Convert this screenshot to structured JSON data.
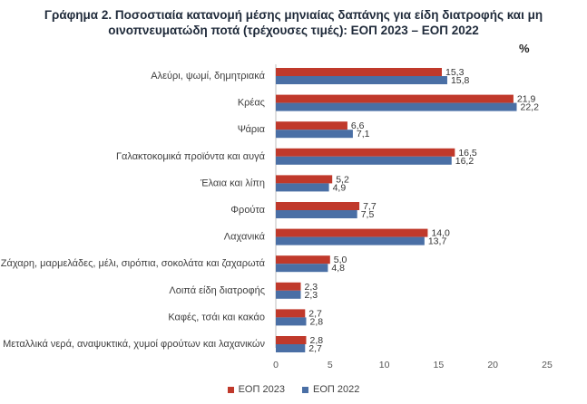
{
  "chart_data": {
    "type": "bar",
    "orientation": "horizontal",
    "title_line1": "Γράφημα 2.  Ποσοστιαία κατανομή μέσης μηνιαίας δαπάνης για είδη διατροφής και μη",
    "title_line2": "οινοπνευματώδη ποτά (τρέχουσες τιμές): ΕΟΠ 2023 – ΕΟΠ 2022",
    "unit": "%",
    "categories": [
      "Αλεύρι, ψωμί, δημητριακά",
      "Κρέας",
      "Ψάρια",
      "Γαλακτοκομικά προϊόντα και αυγά",
      "Έλαια και λίπη",
      "Φρούτα",
      "Λαχανικά",
      "Ζάχαρη, μαρμελάδες, μέλι, σιρόπια, σοκολάτα και ζαχαρωτά",
      "Λοιπά είδη διατροφής",
      "Καφές, τσάι και κακάο",
      "Μεταλλικά νερά, αναψυκτικά, χυμοί φρούτων και λαχανικών"
    ],
    "series": [
      {
        "name": "ΕΟΠ 2023",
        "color": "#c0392b",
        "values": [
          15.3,
          21.9,
          6.6,
          16.5,
          5.2,
          7.7,
          14.0,
          5.0,
          2.3,
          2.7,
          2.8
        ],
        "labels": [
          "15,3",
          "21,9",
          "6,6",
          "16,5",
          "5,2",
          "7,7",
          "14,0",
          "5,0",
          "2,3",
          "2,7",
          "2,8"
        ]
      },
      {
        "name": "ΕΟΠ 2022",
        "color": "#4a6fa5",
        "values": [
          15.8,
          22.2,
          7.1,
          16.2,
          4.9,
          7.5,
          13.7,
          4.8,
          2.3,
          2.8,
          2.7
        ],
        "labels": [
          "15,8",
          "22,2",
          "7,1",
          "16,2",
          "4,9",
          "7,5",
          "13,7",
          "4,8",
          "2,3",
          "2,8",
          "2,7"
        ]
      }
    ],
    "xlim": [
      0,
      25
    ],
    "xticks": [
      0,
      5,
      10,
      15,
      20,
      25
    ],
    "legend": "bottom"
  }
}
